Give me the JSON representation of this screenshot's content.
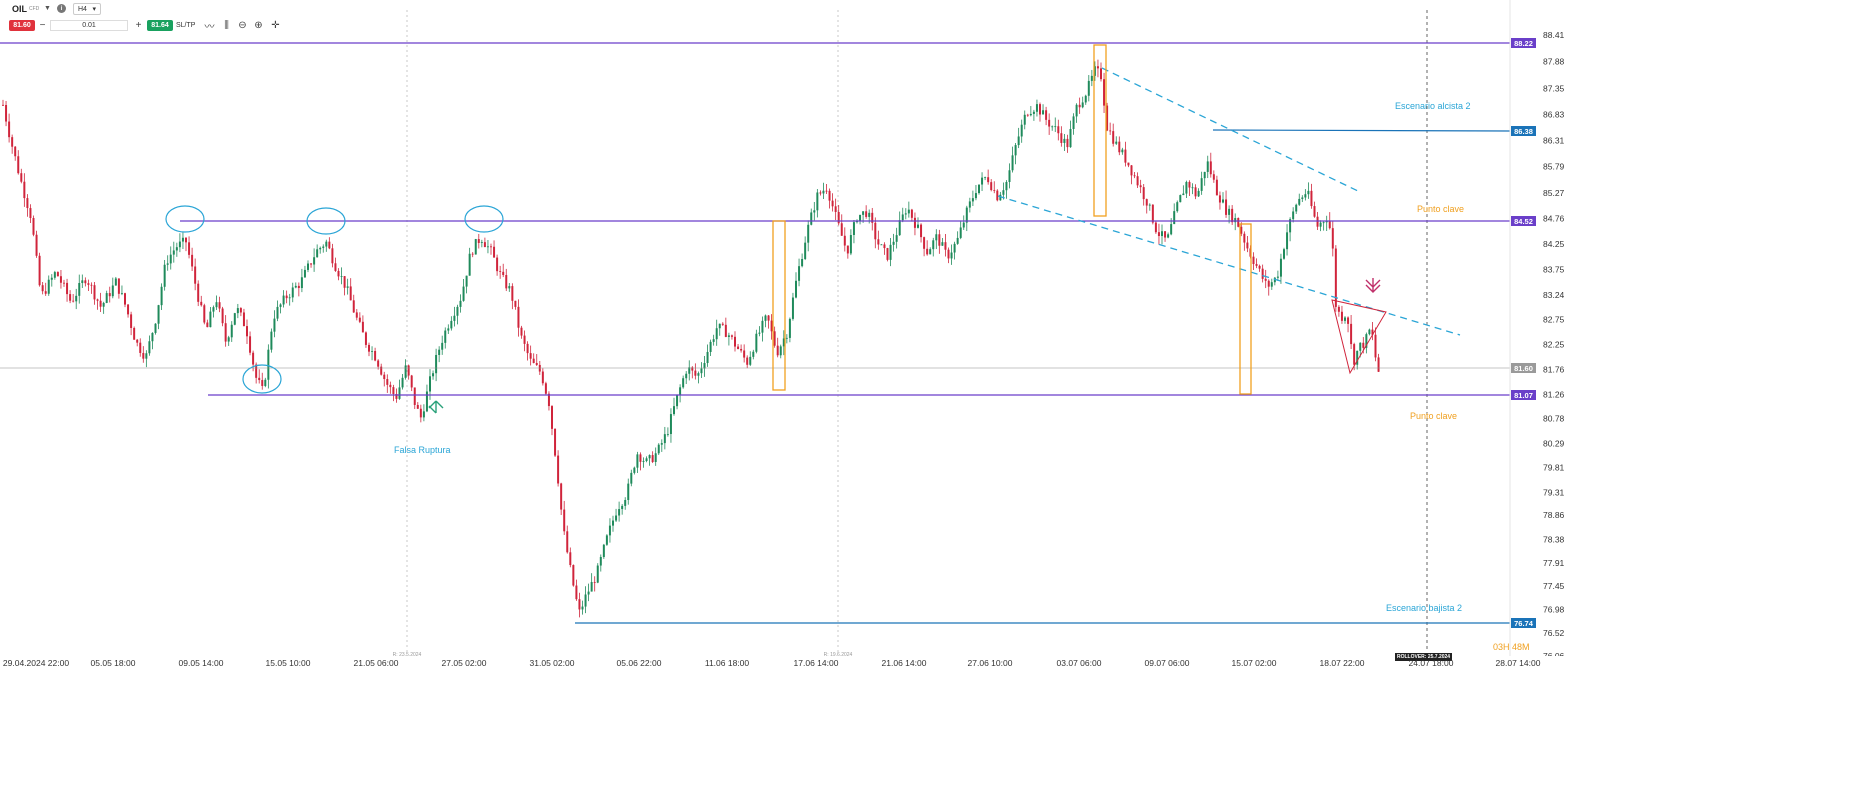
{
  "toolbar": {
    "symbol": "OIL",
    "symbol_type": "CFD",
    "dropdown_icon": "caret-down-icon",
    "info_label": "i",
    "timeframe": "H4",
    "sell_price": "81.60",
    "volume": "0.01",
    "buy_price": "81.64",
    "sltp_label": "SL/TP",
    "icons": [
      "line-chart-icon",
      "indicators-icon",
      "zoom-out-icon",
      "zoom-in-icon",
      "crosshair-icon"
    ],
    "minus_label": "−",
    "plus_label": "+"
  },
  "colors": {
    "up": "#1f8a5b",
    "down": "#d0243b",
    "level": "#6a3fc9",
    "blue_level": "#1a73b8",
    "trend": "#2aa5d6",
    "orange": "#f0a020",
    "price_tag": "#6a3fc9",
    "current_tag": "#9a9a9a"
  },
  "chart_data": {
    "type": "candlestick",
    "symbol": "OIL",
    "timeframe": "H4",
    "ylim": [
      76.06,
      88.41
    ],
    "y_ticks": [
      "88.41",
      "87.88",
      "87.35",
      "86.83",
      "86.31",
      "85.79",
      "85.27",
      "84.76",
      "84.25",
      "83.75",
      "83.24",
      "82.75",
      "82.25",
      "81.76",
      "81.26",
      "80.78",
      "80.29",
      "79.81",
      "79.31",
      "78.86",
      "78.38",
      "77.91",
      "77.45",
      "76.98",
      "76.52",
      "76.06"
    ],
    "x_ticks": [
      "29.04.2024 22:00",
      "05.05 18:00",
      "09.05 14:00",
      "15.05 10:00",
      "21.05 06:00",
      "27.05 02:00",
      "31.05 02:00",
      "05.06 22:00",
      "11.06 18:00",
      "17.06 14:00",
      "21.06 14:00",
      "27.06 10:00",
      "03.07 06:00",
      "09.07 06:00",
      "15.07 02:00",
      "18.07 22:00",
      "24.07 18:00",
      "28.07 14:00"
    ],
    "session_markers": [
      "R: 23.5.2024",
      "R: 19.6.2024"
    ],
    "key_prices": {
      "top": "88.22",
      "bull2": "86.38",
      "level_mid": "84.52",
      "current": "81.60",
      "level_low": "81.07",
      "bottom": "76.74"
    },
    "path": [
      [
        0,
        87.2
      ],
      [
        10,
        86.3
      ],
      [
        20,
        85.5
      ],
      [
        30,
        84.8
      ],
      [
        40,
        83.2
      ],
      [
        55,
        83.7
      ],
      [
        70,
        83.1
      ],
      [
        85,
        83.6
      ],
      [
        100,
        83.0
      ],
      [
        115,
        83.5
      ],
      [
        125,
        83.0
      ],
      [
        135,
        82.3
      ],
      [
        145,
        82.0
      ],
      [
        155,
        82.8
      ],
      [
        165,
        83.9
      ],
      [
        175,
        84.2
      ],
      [
        185,
        84.3
      ],
      [
        195,
        83.4
      ],
      [
        205,
        82.5
      ],
      [
        215,
        83.2
      ],
      [
        225,
        82.3
      ],
      [
        235,
        83.0
      ],
      [
        245,
        82.6
      ],
      [
        255,
        81.6
      ],
      [
        262,
        81.3
      ],
      [
        272,
        82.8
      ],
      [
        285,
        83.2
      ],
      [
        300,
        83.5
      ],
      [
        315,
        84.1
      ],
      [
        325,
        84.3
      ],
      [
        335,
        83.8
      ],
      [
        345,
        83.4
      ],
      [
        355,
        82.8
      ],
      [
        365,
        82.3
      ],
      [
        375,
        82.0
      ],
      [
        385,
        81.5
      ],
      [
        395,
        81.2
      ],
      [
        405,
        81.8
      ],
      [
        415,
        81.0
      ],
      [
        420,
        80.8
      ],
      [
        430,
        81.6
      ],
      [
        440,
        82.3
      ],
      [
        450,
        82.8
      ],
      [
        460,
        83.2
      ],
      [
        470,
        84.1
      ],
      [
        480,
        84.4
      ],
      [
        490,
        84.1
      ],
      [
        500,
        83.6
      ],
      [
        510,
        83.3
      ],
      [
        520,
        82.4
      ],
      [
        530,
        81.9
      ],
      [
        540,
        81.7
      ],
      [
        548,
        81.1
      ],
      [
        556,
        79.8
      ],
      [
        562,
        78.6
      ],
      [
        570,
        77.7
      ],
      [
        578,
        76.9
      ],
      [
        586,
        77.3
      ],
      [
        596,
        77.7
      ],
      [
        606,
        78.4
      ],
      [
        616,
        79.0
      ],
      [
        626,
        79.3
      ],
      [
        636,
        80.1
      ],
      [
        646,
        79.9
      ],
      [
        656,
        80.1
      ],
      [
        666,
        80.5
      ],
      [
        676,
        81.2
      ],
      [
        686,
        81.8
      ],
      [
        696,
        81.6
      ],
      [
        706,
        82.1
      ],
      [
        716,
        82.6
      ],
      [
        726,
        82.5
      ],
      [
        736,
        82.2
      ],
      [
        746,
        81.9
      ],
      [
        756,
        82.4
      ],
      [
        766,
        82.8
      ],
      [
        776,
        82.1
      ],
      [
        786,
        82.5
      ],
      [
        796,
        83.6
      ],
      [
        806,
        84.5
      ],
      [
        816,
        85.2
      ],
      [
        826,
        85.4
      ],
      [
        836,
        84.7
      ],
      [
        846,
        84.1
      ],
      [
        856,
        84.8
      ],
      [
        866,
        84.9
      ],
      [
        876,
        84.3
      ],
      [
        886,
        84.0
      ],
      [
        896,
        84.5
      ],
      [
        906,
        85.0
      ],
      [
        916,
        84.6
      ],
      [
        926,
        84.1
      ],
      [
        936,
        84.4
      ],
      [
        946,
        84.0
      ],
      [
        956,
        84.3
      ],
      [
        966,
        84.9
      ],
      [
        976,
        85.4
      ],
      [
        986,
        85.6
      ],
      [
        996,
        85.2
      ],
      [
        1006,
        85.5
      ],
      [
        1016,
        86.3
      ],
      [
        1026,
        86.9
      ],
      [
        1036,
        87.0
      ],
      [
        1046,
        86.7
      ],
      [
        1056,
        86.5
      ],
      [
        1066,
        86.2
      ],
      [
        1076,
        87.0
      ],
      [
        1086,
        87.3
      ],
      [
        1094,
        87.7
      ],
      [
        1100,
        87.6
      ],
      [
        1106,
        86.6
      ],
      [
        1116,
        86.2
      ],
      [
        1126,
        85.9
      ],
      [
        1136,
        85.5
      ],
      [
        1146,
        85.1
      ],
      [
        1156,
        84.5
      ],
      [
        1166,
        84.3
      ],
      [
        1176,
        85.0
      ],
      [
        1186,
        85.5
      ],
      [
        1196,
        85.2
      ],
      [
        1206,
        85.9
      ],
      [
        1216,
        85.3
      ],
      [
        1226,
        84.9
      ],
      [
        1236,
        84.7
      ],
      [
        1246,
        84.2
      ],
      [
        1256,
        83.8
      ],
      [
        1266,
        83.4
      ],
      [
        1276,
        83.6
      ],
      [
        1286,
        84.5
      ],
      [
        1296,
        85.1
      ],
      [
        1306,
        85.3
      ],
      [
        1316,
        84.6
      ],
      [
        1326,
        84.8
      ],
      [
        1331,
        84.4
      ],
      [
        1335,
        83.0
      ],
      [
        1340,
        82.8
      ],
      [
        1346,
        82.9
      ],
      [
        1352,
        81.9
      ],
      [
        1358,
        82.2
      ],
      [
        1364,
        82.3
      ],
      [
        1370,
        82.6
      ],
      [
        1376,
        81.8
      ],
      [
        1380,
        81.6
      ]
    ],
    "annotations": {
      "falsa_ruptura": "Falsa Ruptura",
      "escenario_alcista": "Escenario alcista 2",
      "punto_clave_1": "Punto clave",
      "punto_clave_2": "Punto clave",
      "escenario_bajista": "Escenario bajista 2"
    }
  },
  "footer": {
    "countdown": "03H 48M",
    "rollover": "ROLLOVER: 25.7.2024"
  }
}
